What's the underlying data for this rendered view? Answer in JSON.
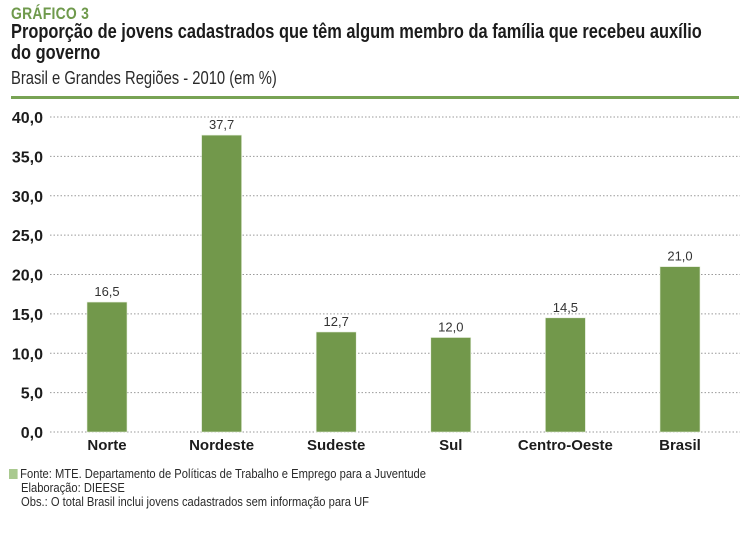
{
  "header": {
    "figure_label": "GRÁFICO 3",
    "title": "Proporção de jovens cadastrados que têm algum membro da família que recebeu auxílio do governo",
    "subtitle": "Brasil e Grandes Regiões - 2010 (em %)"
  },
  "colors": {
    "bar": "#72984b",
    "accent_rule": "#78a354",
    "label_green": "#6f9a4c",
    "swatch": "#a9c98f",
    "grid": "#9a9a9a"
  },
  "chart_data": {
    "type": "bar",
    "title": "Proporção de jovens cadastrados que têm algum membro da família que recebeu auxílio do governo",
    "subtitle": "Brasil e Grandes Regiões - 2010 (em %)",
    "xlabel": "",
    "ylabel": "",
    "categories": [
      "Norte",
      "Nordeste",
      "Sudeste",
      "Sul",
      "Centro-Oeste",
      "Brasil"
    ],
    "values": [
      16.5,
      37.7,
      12.7,
      12.0,
      14.5,
      21.0
    ],
    "value_labels": [
      "16,5",
      "37,7",
      "12,7",
      "12,0",
      "14,5",
      "21,0"
    ],
    "ylim": [
      0,
      40
    ],
    "yticks": [
      0,
      5,
      10,
      15,
      20,
      25,
      30,
      35,
      40
    ],
    "ytick_labels": [
      "0,0",
      "5,0",
      "10,0",
      "15,0",
      "20,0",
      "25,0",
      "30,0",
      "35,0",
      "40,0"
    ],
    "grid": true,
    "grid_style": "dotted horizontal",
    "legend": "none"
  },
  "footer": {
    "source": "Fonte: MTE. Departamento de Políticas de Trabalho e Emprego para a Juventude",
    "elaboration": "Elaboração: DIEESE",
    "note": "Obs.: O total Brasil inclui jovens cadastrados sem informação para UF"
  }
}
